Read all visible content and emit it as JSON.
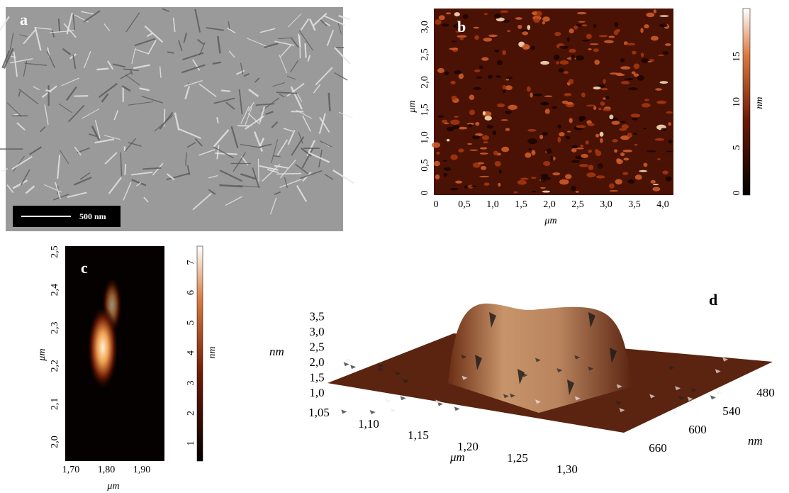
{
  "panels": [
    {
      "label": "a",
      "scale_bar": "500 nm"
    },
    {
      "label": "b",
      "x_label": "μm",
      "y_label": "μm",
      "x_ticks": [
        "0",
        "0,5",
        "1,0",
        "1,5",
        "2,0",
        "2,5",
        "3,0",
        "3,5",
        "4,0"
      ],
      "y_ticks": [
        "0",
        "0,5",
        "1,0",
        "1,5",
        "2,0",
        "2,5",
        "3,0"
      ],
      "colorbar_label": "nm",
      "colorbar_ticks": [
        "0",
        "5",
        "10",
        "15"
      ]
    },
    {
      "label": "c",
      "x_label": "μm",
      "y_label": "μm",
      "x_ticks": [
        "1,70",
        "1,80",
        "1,90"
      ],
      "y_ticks": [
        "2,0",
        "2,1",
        "2,2",
        "2,3",
        "2,4",
        "2,5"
      ],
      "colorbar_label": "nm",
      "colorbar_ticks": [
        "1",
        "2",
        "3",
        "4",
        "5",
        "6",
        "7"
      ]
    },
    {
      "label": "d",
      "z_label": "nm",
      "z_ticks": [
        "1,0",
        "1,5",
        "2,0",
        "2,5",
        "3,0",
        "3,5"
      ],
      "x_label": "μm",
      "x_ticks": [
        "1,05",
        "1,10",
        "1,15",
        "1,20",
        "1,25",
        "1,30"
      ],
      "y_label": "nm",
      "y_ticks": [
        "480",
        "540",
        "600",
        "660"
      ]
    }
  ]
}
